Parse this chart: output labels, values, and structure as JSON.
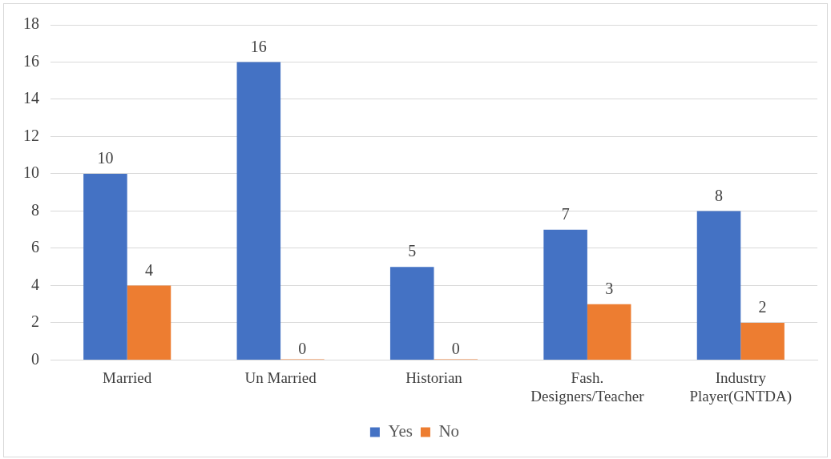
{
  "chart_data": {
    "type": "bar",
    "categories": [
      "Married",
      "Un Married",
      "Historian",
      "Fash. Designers/Teacher",
      "Industry Player(GNTDA)"
    ],
    "series": [
      {
        "name": "Yes",
        "color": "#4472c4",
        "values": [
          10,
          16,
          5,
          7,
          8
        ]
      },
      {
        "name": "No",
        "color": "#ed7d31",
        "values": [
          4,
          0,
          0,
          3,
          2
        ]
      }
    ],
    "ylim": [
      0,
      18
    ],
    "yticks": [
      0,
      2,
      4,
      6,
      8,
      10,
      12,
      14,
      16,
      18
    ],
    "grid": "y",
    "legend": "bottom",
    "data_labels": true
  }
}
